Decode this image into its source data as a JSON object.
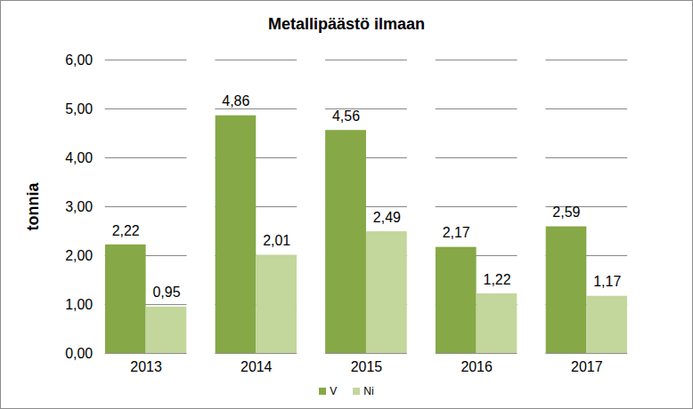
{
  "chart_data": {
    "type": "bar",
    "title": "Metallipäästö ilmaan",
    "y_label": "tonnia",
    "categories": [
      "2013",
      "2014",
      "2015",
      "2016",
      "2017"
    ],
    "series": [
      {
        "name": "V",
        "color": "#86a846",
        "values": [
          2.22,
          4.86,
          4.56,
          2.17,
          2.59
        ],
        "value_labels": [
          "2,22",
          "4,86",
          "4,56",
          "2,17",
          "2,59"
        ]
      },
      {
        "name": "Ni",
        "color": "#c3d69b",
        "values": [
          0.95,
          2.01,
          2.49,
          1.22,
          1.17
        ],
        "value_labels": [
          "0,95",
          "2,01",
          "2,49",
          "1,22",
          "1,17"
        ]
      }
    ],
    "ylim": [
      0,
      6
    ],
    "yticks": [
      {
        "value": 0,
        "label": "0,00"
      },
      {
        "value": 1,
        "label": "1,00"
      },
      {
        "value": 2,
        "label": "2,00"
      },
      {
        "value": 3,
        "label": "3,00"
      },
      {
        "value": 4,
        "label": "4,00"
      },
      {
        "value": 5,
        "label": "5,00"
      },
      {
        "value": 6,
        "label": "6,00"
      }
    ],
    "grid": true,
    "legend": "bottom",
    "data_labels": true
  }
}
